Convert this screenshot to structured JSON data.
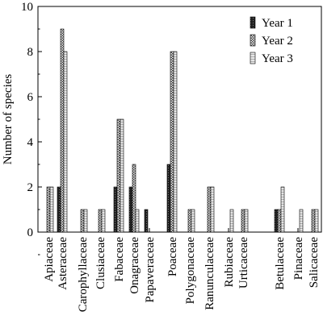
{
  "chart_data": {
    "type": "bar",
    "categories": [
      "Apiaceae",
      "Asteraceae",
      "Carophyllaceae",
      "Clusiaceae",
      "Fabaceae",
      "Onagraceae",
      "Papaveraceae",
      "Poaceae",
      "Polygonaceae",
      "Ranunculaceae",
      "Rubiaceae",
      "Urticaceae",
      "Betulaceae",
      "Pinaceae",
      "Salicaceae"
    ],
    "series": [
      {
        "name": "Year 1",
        "values": [
          0,
          2,
          0,
          0,
          2,
          2,
          1,
          3,
          0,
          0,
          0,
          0,
          1,
          0,
          0
        ]
      },
      {
        "name": "Year 2",
        "values": [
          2,
          9,
          1,
          1,
          5,
          3,
          0,
          8,
          1,
          2,
          0,
          1,
          1,
          0,
          1
        ]
      },
      {
        "name": "Year 3",
        "values": [
          2,
          8,
          1,
          1,
          5,
          1,
          0,
          8,
          1,
          2,
          1,
          1,
          2,
          1,
          1
        ]
      }
    ],
    "title": "",
    "xlabel": "",
    "ylabel": "Number of species",
    "ylim": [
      0,
      10
    ],
    "yticks": [
      0,
      2,
      4,
      6,
      8,
      10
    ],
    "grid": false,
    "legend_position": "top-right",
    "colors": {
      "Year 1": "#333333",
      "Year 2": "#8a8a8a",
      "Year 3": "#cfcfcf"
    }
  }
}
